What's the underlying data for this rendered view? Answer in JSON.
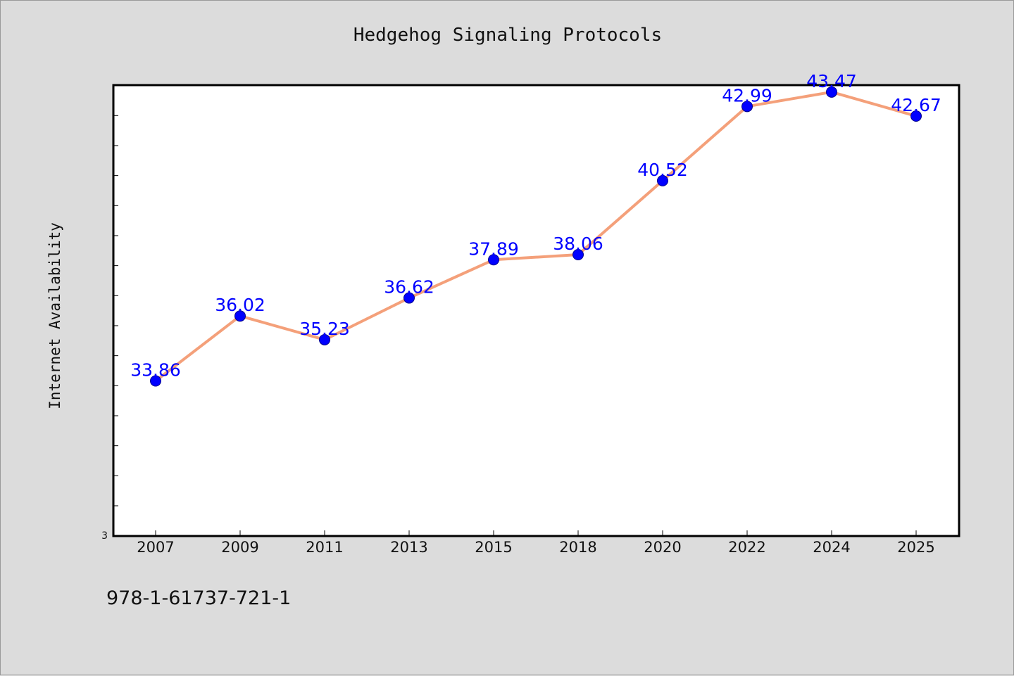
{
  "chart_data": {
    "type": "line",
    "title": "Hedgehog Signaling Protocols",
    "ylabel": "Internet Availability",
    "xlabel": "",
    "categories": [
      "2007",
      "2009",
      "2011",
      "2013",
      "2015",
      "2018",
      "2020",
      "2022",
      "2024",
      "2025"
    ],
    "series": [
      {
        "values": [
          33.86,
          36.02,
          35.23,
          36.62,
          37.89,
          38.06,
          40.52,
          42.99,
          43.47,
          42.67
        ],
        "data_labels": [
          "33.86",
          "36.02",
          "35.23",
          "36.62",
          "37.89",
          "38.06",
          "40.52",
          "42.99",
          "43.47",
          "42.67"
        ],
        "line_color": "#f4a07a",
        "marker_color": "#0000ff"
      }
    ],
    "y_tick_labels": [
      "3"
    ],
    "ylim": [
      28.7,
      43.7
    ],
    "grid": false,
    "legend": "none"
  },
  "footer_text": "978-1-61737-721-1",
  "colors": {
    "background": "#dcdcdc",
    "plot_background": "#ffffff",
    "label_color": "#0000ff"
  }
}
